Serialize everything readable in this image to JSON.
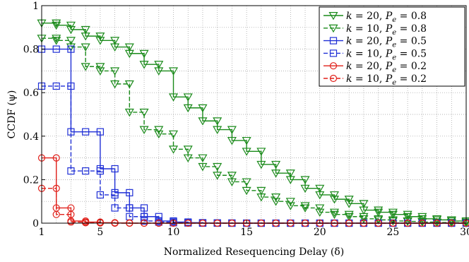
{
  "chart_data": {
    "type": "line",
    "xlabel": "Normalized Resequencing Delay (δ̄)",
    "ylabel": "CCDF (ψ)",
    "xlim": [
      1,
      30
    ],
    "ylim": [
      0,
      1
    ],
    "x_ticks": [
      1,
      5,
      10,
      15,
      20,
      25,
      30
    ],
    "y_ticks": [
      0,
      0.2,
      0.4,
      0.6,
      0.8,
      1
    ],
    "x_tick_labels": [
      "1",
      "5",
      "10",
      "15",
      "20",
      "25",
      "30"
    ],
    "y_tick_labels": [
      "0",
      "0.2",
      "0.4",
      "0.6",
      "0.8",
      "1"
    ],
    "grid": true,
    "legend_position": "top-right",
    "step_style": true,
    "series": [
      {
        "name": "k = 20, Pe = 0.8",
        "legend_k": "20",
        "legend_p": "0.8",
        "color": "#1a8a1a",
        "marker": "triangle-down",
        "dashed": false,
        "x": [
          1,
          2,
          3,
          4,
          5,
          6,
          7,
          8,
          9,
          10,
          11,
          12,
          13,
          14,
          15,
          16,
          17,
          18,
          19,
          20,
          21,
          22,
          23,
          24,
          25,
          26,
          27,
          28,
          29,
          30
        ],
        "y": [
          0.92,
          0.91,
          0.89,
          0.86,
          0.84,
          0.81,
          0.78,
          0.73,
          0.7,
          0.58,
          0.53,
          0.47,
          0.43,
          0.38,
          0.33,
          0.27,
          0.23,
          0.2,
          0.16,
          0.13,
          0.11,
          0.09,
          0.06,
          0.05,
          0.04,
          0.03,
          0.02,
          0.015,
          0.01,
          0.005
        ]
      },
      {
        "name": "k = 10, Pe = 0.8",
        "legend_k": "10",
        "legend_p": "0.8",
        "color": "#1a8a1a",
        "marker": "triangle-down",
        "dashed": true,
        "x": [
          1,
          2,
          3,
          4,
          5,
          6,
          7,
          8,
          9,
          10,
          11,
          12,
          13,
          14,
          15,
          16,
          17,
          18,
          19,
          20,
          21,
          22,
          23,
          24,
          25,
          26,
          27,
          28,
          29,
          30
        ],
        "y": [
          0.85,
          0.84,
          0.81,
          0.72,
          0.7,
          0.64,
          0.51,
          0.43,
          0.41,
          0.34,
          0.3,
          0.26,
          0.22,
          0.19,
          0.15,
          0.12,
          0.1,
          0.08,
          0.07,
          0.05,
          0.04,
          0.03,
          0.02,
          0.015,
          0.01,
          0.008,
          0.005,
          0.003,
          0.002,
          0.001
        ]
      },
      {
        "name": "k = 20, Pe = 0.5",
        "legend_k": "20",
        "legend_p": "0.5",
        "color": "#1f2fd6",
        "marker": "square",
        "dashed": false,
        "x": [
          1,
          2,
          3,
          4,
          5,
          6,
          7,
          8,
          9,
          10,
          11,
          12,
          13,
          14,
          15,
          16,
          17,
          18,
          19,
          20,
          21,
          22,
          23,
          24,
          25,
          26,
          27,
          28,
          29,
          30
        ],
        "y": [
          0.8,
          0.8,
          0.42,
          0.42,
          0.25,
          0.14,
          0.07,
          0.03,
          0.01,
          0.005,
          0.002,
          0.001,
          0.0005,
          0,
          0,
          0,
          0,
          0,
          0,
          0,
          0,
          0,
          0,
          0,
          0,
          0,
          0,
          0,
          0,
          0
        ]
      },
      {
        "name": "k = 10, Pe = 0.5",
        "legend_k": "10",
        "legend_p": "0.5",
        "color": "#1f2fd6",
        "marker": "square",
        "dashed": true,
        "x": [
          1,
          2,
          3,
          4,
          5,
          6,
          7,
          8,
          9,
          10,
          11,
          12,
          13,
          14,
          15,
          16,
          17,
          18,
          19,
          20,
          21,
          22,
          23,
          24,
          25,
          26,
          27,
          28,
          29,
          30
        ],
        "y": [
          0.63,
          0.63,
          0.24,
          0.24,
          0.13,
          0.07,
          0.03,
          0.01,
          0.005,
          0.002,
          0.001,
          0,
          0,
          0,
          0,
          0,
          0,
          0,
          0,
          0,
          0,
          0,
          0,
          0,
          0,
          0,
          0,
          0,
          0,
          0
        ]
      },
      {
        "name": "k = 20, Pe = 0.2",
        "legend_k": "20",
        "legend_p": "0.2",
        "color": "#e0201a",
        "marker": "circle",
        "dashed": false,
        "x": [
          1,
          2,
          3,
          4,
          5,
          6,
          7,
          8,
          9,
          10,
          11,
          12,
          13,
          14,
          15,
          16,
          17,
          18,
          19,
          20,
          21,
          22,
          23,
          24,
          25,
          26,
          27,
          28,
          29,
          30
        ],
        "y": [
          0.3,
          0.07,
          0.01,
          0.005,
          0.002,
          0.001,
          0,
          0,
          0,
          0,
          0,
          0,
          0,
          0,
          0,
          0,
          0,
          0,
          0,
          0,
          0,
          0,
          0,
          0,
          0,
          0,
          0,
          0,
          0,
          0
        ]
      },
      {
        "name": "k = 10, Pe = 0.2",
        "legend_k": "10",
        "legend_p": "0.2",
        "color": "#e0201a",
        "marker": "circle",
        "dashed": true,
        "x": [
          1,
          2,
          3,
          4,
          5,
          6,
          7,
          8,
          9,
          10,
          11,
          12,
          13,
          14,
          15,
          16,
          17,
          18,
          19,
          20,
          21,
          22,
          23,
          24,
          25,
          26,
          27,
          28,
          29,
          30
        ],
        "y": [
          0.16,
          0.04,
          0.005,
          0.002,
          0.001,
          0,
          0,
          0,
          0,
          0,
          0,
          0,
          0,
          0,
          0,
          0,
          0,
          0,
          0,
          0,
          0,
          0,
          0,
          0,
          0,
          0,
          0,
          0,
          0,
          0
        ]
      }
    ]
  }
}
